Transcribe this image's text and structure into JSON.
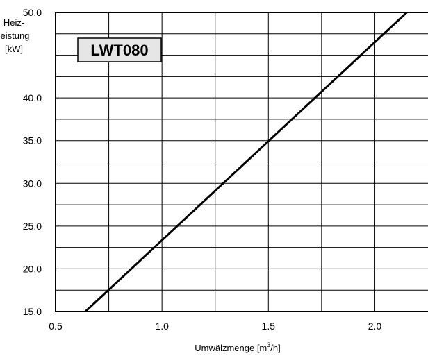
{
  "chart_data": {
    "type": "line",
    "title": "",
    "label_box": "LWT080",
    "xlabel": {
      "prefix": "Umwälzmenge [m",
      "sup": "3",
      "suffix": "/h]"
    },
    "ylabel_lines": [
      "Heiz-",
      "leistung",
      "[kW]"
    ],
    "xlim": [
      0.5,
      2.25
    ],
    "ylim": [
      15.0,
      50.0
    ],
    "x_ticks": [
      0.5,
      1.0,
      1.5,
      2.0
    ],
    "x_tick_labels": [
      "0.5",
      "1.0",
      "1.5",
      "2.0"
    ],
    "x_grid_step": 0.25,
    "y_ticks": [
      15,
      20,
      25,
      30,
      35,
      40,
      50
    ],
    "y_tick_labels": [
      "15.0",
      "20.0",
      "25.0",
      "30.0",
      "35.0",
      "40.0",
      "50.0"
    ],
    "y_grid_step": 2.5,
    "grid": true,
    "series": [
      {
        "x": [
          0.64,
          2.15
        ],
        "y": [
          15.0,
          50.0
        ]
      }
    ],
    "colors": {
      "line": "#000000",
      "grid": "#000000",
      "label_box_fill": "#e6e6e6"
    }
  }
}
